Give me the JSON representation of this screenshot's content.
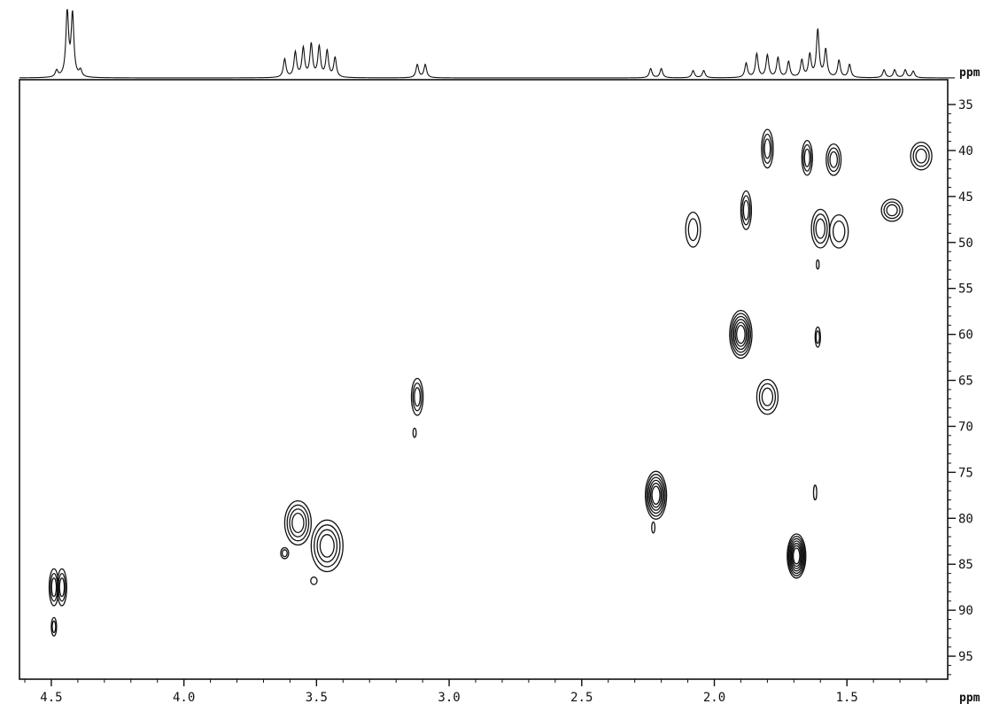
{
  "chart_data": {
    "type": "heatmap",
    "title": "",
    "x_axis": {
      "unit_label": "ppm",
      "range": [
        4.62,
        1.12
      ],
      "reversed": true,
      "ticks": [
        4.5,
        4.0,
        3.5,
        3.0,
        2.5,
        2.0,
        1.5
      ],
      "tick_labels": [
        "4.5",
        "4.0",
        "3.5",
        "3.0",
        "2.5",
        "2.0",
        "1.5"
      ]
    },
    "y_axis": {
      "unit_label": "ppm",
      "range": [
        32.3,
        97.5
      ],
      "position": "right",
      "ticks": [
        35,
        40,
        45,
        50,
        55,
        60,
        65,
        70,
        75,
        80,
        85,
        90,
        95
      ],
      "tick_labels": [
        "35",
        "40",
        "45",
        "50",
        "55",
        "60",
        "65",
        "70",
        "75",
        "80",
        "85",
        "90",
        "95"
      ]
    },
    "projection_1d": {
      "position": "top",
      "peaks": [
        {
          "ppm": 4.44,
          "intensity": 1.0
        },
        {
          "ppm": 4.42,
          "intensity": 0.95
        },
        {
          "ppm": 4.48,
          "intensity": 0.1
        },
        {
          "ppm": 4.39,
          "intensity": 0.1
        },
        {
          "ppm": 3.62,
          "intensity": 0.28
        },
        {
          "ppm": 3.58,
          "intensity": 0.38
        },
        {
          "ppm": 3.55,
          "intensity": 0.44
        },
        {
          "ppm": 3.52,
          "intensity": 0.5
        },
        {
          "ppm": 3.49,
          "intensity": 0.46
        },
        {
          "ppm": 3.46,
          "intensity": 0.4
        },
        {
          "ppm": 3.43,
          "intensity": 0.3
        },
        {
          "ppm": 3.12,
          "intensity": 0.2
        },
        {
          "ppm": 3.09,
          "intensity": 0.2
        },
        {
          "ppm": 2.24,
          "intensity": 0.14
        },
        {
          "ppm": 2.2,
          "intensity": 0.14
        },
        {
          "ppm": 2.08,
          "intensity": 0.11
        },
        {
          "ppm": 2.04,
          "intensity": 0.11
        },
        {
          "ppm": 1.88,
          "intensity": 0.22
        },
        {
          "ppm": 1.84,
          "intensity": 0.36
        },
        {
          "ppm": 1.8,
          "intensity": 0.34
        },
        {
          "ppm": 1.76,
          "intensity": 0.3
        },
        {
          "ppm": 1.72,
          "intensity": 0.24
        },
        {
          "ppm": 1.67,
          "intensity": 0.26
        },
        {
          "ppm": 1.64,
          "intensity": 0.34
        },
        {
          "ppm": 1.61,
          "intensity": 0.72
        },
        {
          "ppm": 1.58,
          "intensity": 0.42
        },
        {
          "ppm": 1.53,
          "intensity": 0.26
        },
        {
          "ppm": 1.49,
          "intensity": 0.2
        },
        {
          "ppm": 1.36,
          "intensity": 0.12
        },
        {
          "ppm": 1.32,
          "intensity": 0.12
        },
        {
          "ppm": 1.28,
          "intensity": 0.12
        },
        {
          "ppm": 1.25,
          "intensity": 0.1
        }
      ]
    },
    "cross_peaks": [
      {
        "x": 4.49,
        "y": 87.5,
        "levels": 3,
        "wx": 0.018,
        "hy": 2.0
      },
      {
        "x": 4.46,
        "y": 87.5,
        "levels": 3,
        "wx": 0.018,
        "hy": 2.0
      },
      {
        "x": 4.49,
        "y": 91.8,
        "levels": 2,
        "wx": 0.01,
        "hy": 1.0
      },
      {
        "x": 3.57,
        "y": 80.5,
        "levels": 4,
        "wx": 0.05,
        "hy": 2.4
      },
      {
        "x": 3.46,
        "y": 83.0,
        "levels": 4,
        "wx": 0.06,
        "hy": 2.8
      },
      {
        "x": 3.62,
        "y": 83.8,
        "levels": 2,
        "wx": 0.015,
        "hy": 0.6
      },
      {
        "x": 3.51,
        "y": 86.8,
        "levels": 1,
        "wx": 0.012,
        "hy": 0.4
      },
      {
        "x": 3.12,
        "y": 66.8,
        "levels": 3,
        "wx": 0.022,
        "hy": 2.0
      },
      {
        "x": 3.13,
        "y": 70.7,
        "levels": 1,
        "wx": 0.006,
        "hy": 0.5
      },
      {
        "x": 2.22,
        "y": 77.5,
        "levels": 6,
        "wx": 0.04,
        "hy": 2.6
      },
      {
        "x": 2.23,
        "y": 81.0,
        "levels": 1,
        "wx": 0.006,
        "hy": 0.6
      },
      {
        "x": 2.08,
        "y": 48.6,
        "levels": 2,
        "wx": 0.028,
        "hy": 1.9
      },
      {
        "x": 1.9,
        "y": 60.0,
        "levels": 6,
        "wx": 0.042,
        "hy": 2.6
      },
      {
        "x": 1.88,
        "y": 46.5,
        "levels": 3,
        "wx": 0.02,
        "hy": 2.1
      },
      {
        "x": 1.8,
        "y": 39.8,
        "levels": 3,
        "wx": 0.022,
        "hy": 2.1
      },
      {
        "x": 1.8,
        "y": 66.8,
        "levels": 3,
        "wx": 0.04,
        "hy": 1.9
      },
      {
        "x": 1.69,
        "y": 84.1,
        "levels": 7,
        "wx": 0.035,
        "hy": 2.4
      },
      {
        "x": 1.65,
        "y": 40.8,
        "levels": 3,
        "wx": 0.02,
        "hy": 1.9
      },
      {
        "x": 1.6,
        "y": 48.5,
        "levels": 3,
        "wx": 0.034,
        "hy": 2.1
      },
      {
        "x": 1.53,
        "y": 48.8,
        "levels": 2,
        "wx": 0.035,
        "hy": 1.8
      },
      {
        "x": 1.61,
        "y": 60.3,
        "levels": 2,
        "wx": 0.01,
        "hy": 1.1
      },
      {
        "x": 1.61,
        "y": 52.4,
        "levels": 1,
        "wx": 0.005,
        "hy": 0.5
      },
      {
        "x": 1.62,
        "y": 77.2,
        "levels": 1,
        "wx": 0.006,
        "hy": 0.8
      },
      {
        "x": 1.55,
        "y": 41.0,
        "levels": 3,
        "wx": 0.028,
        "hy": 1.7
      },
      {
        "x": 1.33,
        "y": 46.5,
        "levels": 3,
        "wx": 0.04,
        "hy": 1.2
      },
      {
        "x": 1.22,
        "y": 40.6,
        "levels": 3,
        "wx": 0.04,
        "hy": 1.5
      }
    ],
    "colors": {
      "ink": "#111111",
      "background": "#ffffff"
    }
  }
}
